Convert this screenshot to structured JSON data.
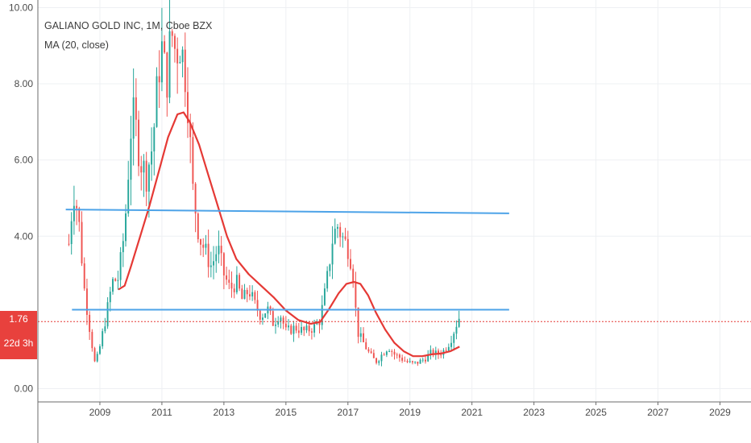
{
  "header": {
    "title": "GALIANO GOLD INC, 1M, Cboe BZX",
    "indicator": "MA (20, close)"
  },
  "price_badge": {
    "value": "1.76",
    "color": "#e8413d"
  },
  "countdown_badge": {
    "value": "22d 3h",
    "color": "#e8413d"
  },
  "colors": {
    "up": "#26a69a",
    "down": "#ef5350",
    "ma": "#e53935",
    "trendline": "#4da3e8",
    "grid": "#eef0f3"
  },
  "chart_data": {
    "type": "candlestick",
    "title": "GALIANO GOLD INC, 1M, Cboe BZX",
    "y_ticks": [
      "10.00",
      "8.00",
      "6.00",
      "4.00",
      "0.00"
    ],
    "y_tick_values": [
      10,
      8,
      6,
      4,
      0
    ],
    "x_ticks": [
      "2009",
      "2011",
      "2013",
      "2015",
      "2017",
      "2019",
      "2021",
      "2023",
      "2025",
      "2027",
      "2029"
    ],
    "x_tick_values": [
      2009,
      2011,
      2013,
      2015,
      2017,
      2019,
      2021,
      2023,
      2025,
      2027,
      2029
    ],
    "ylim": [
      -0.35,
      10.2
    ],
    "xlim": [
      2007.0,
      2030.0
    ],
    "grid": true,
    "last_price": 1.76,
    "price_path": [
      [
        2008.0,
        3.8
      ],
      [
        2008.15,
        5.2
      ],
      [
        2008.3,
        4.6
      ],
      [
        2008.5,
        2.6
      ],
      [
        2008.7,
        1.4
      ],
      [
        2008.85,
        0.6
      ],
      [
        2009.0,
        1.1
      ],
      [
        2009.2,
        1.9
      ],
      [
        2009.4,
        2.8
      ],
      [
        2009.6,
        2.9
      ],
      [
        2009.8,
        4.2
      ],
      [
        2010.0,
        6.8
      ],
      [
        2010.1,
        7.2
      ],
      [
        2010.3,
        6.0
      ],
      [
        2010.5,
        5.6
      ],
      [
        2010.7,
        6.4
      ],
      [
        2010.9,
        8.4
      ],
      [
        2011.0,
        8.9
      ],
      [
        2011.15,
        8.0
      ],
      [
        2011.3,
        9.4
      ],
      [
        2011.45,
        8.8
      ],
      [
        2011.6,
        9.1
      ],
      [
        2011.8,
        8.0
      ],
      [
        2012.0,
        5.2
      ],
      [
        2012.2,
        4.0
      ],
      [
        2012.4,
        3.6
      ],
      [
        2012.6,
        3.2
      ],
      [
        2012.8,
        3.7
      ],
      [
        2013.0,
        3.0
      ],
      [
        2013.2,
        2.6
      ],
      [
        2013.4,
        2.8
      ],
      [
        2013.6,
        2.3
      ],
      [
        2013.8,
        2.6
      ],
      [
        2014.0,
        2.2
      ],
      [
        2014.2,
        1.9
      ],
      [
        2014.4,
        2.1
      ],
      [
        2014.6,
        1.7
      ],
      [
        2014.8,
        2.0
      ],
      [
        2015.0,
        1.5
      ],
      [
        2015.3,
        1.6
      ],
      [
        2015.6,
        1.5
      ],
      [
        2015.9,
        1.6
      ],
      [
        2016.1,
        1.8
      ],
      [
        2016.3,
        2.7
      ],
      [
        2016.5,
        3.9
      ],
      [
        2016.65,
        4.3
      ],
      [
        2016.8,
        4.0
      ],
      [
        2017.0,
        3.7
      ],
      [
        2017.15,
        3.2
      ],
      [
        2017.3,
        1.5
      ],
      [
        2017.5,
        1.2
      ],
      [
        2017.7,
        0.9
      ],
      [
        2017.9,
        0.7
      ],
      [
        2018.1,
        0.9
      ],
      [
        2018.3,
        1.1
      ],
      [
        2018.5,
        0.9
      ],
      [
        2018.7,
        0.8
      ],
      [
        2018.9,
        0.7
      ],
      [
        2019.1,
        0.65
      ],
      [
        2019.3,
        0.7
      ],
      [
        2019.5,
        0.8
      ],
      [
        2019.7,
        0.95
      ],
      [
        2019.9,
        0.9
      ],
      [
        2020.1,
        1.0
      ],
      [
        2020.3,
        1.25
      ],
      [
        2020.5,
        1.7
      ],
      [
        2020.6,
        1.9
      ]
    ],
    "ma_series": {
      "name": "MA (20, close)",
      "points": [
        [
          2009.6,
          2.6
        ],
        [
          2009.8,
          2.7
        ],
        [
          2010.0,
          3.2
        ],
        [
          2010.3,
          4.0
        ],
        [
          2010.6,
          4.8
        ],
        [
          2010.9,
          5.7
        ],
        [
          2011.2,
          6.6
        ],
        [
          2011.5,
          7.2
        ],
        [
          2011.7,
          7.25
        ],
        [
          2011.9,
          7.0
        ],
        [
          2012.2,
          6.4
        ],
        [
          2012.5,
          5.6
        ],
        [
          2012.8,
          4.8
        ],
        [
          2013.1,
          4.0
        ],
        [
          2013.4,
          3.4
        ],
        [
          2013.8,
          3.0
        ],
        [
          2014.2,
          2.7
        ],
        [
          2014.6,
          2.4
        ],
        [
          2015.0,
          2.05
        ],
        [
          2015.4,
          1.8
        ],
        [
          2015.8,
          1.7
        ],
        [
          2016.1,
          1.75
        ],
        [
          2016.4,
          2.1
        ],
        [
          2016.7,
          2.5
        ],
        [
          2016.95,
          2.75
        ],
        [
          2017.2,
          2.8
        ],
        [
          2017.4,
          2.75
        ],
        [
          2017.65,
          2.45
        ],
        [
          2017.9,
          2.0
        ],
        [
          2018.2,
          1.55
        ],
        [
          2018.5,
          1.2
        ],
        [
          2018.8,
          0.98
        ],
        [
          2019.1,
          0.85
        ],
        [
          2019.4,
          0.85
        ],
        [
          2019.7,
          0.9
        ],
        [
          2020.0,
          0.92
        ],
        [
          2020.3,
          0.98
        ],
        [
          2020.6,
          1.1
        ]
      ]
    },
    "trendlines": [
      {
        "from": [
          2007.9,
          4.7
        ],
        "to": [
          2022.2,
          4.6
        ]
      },
      {
        "from": [
          2008.1,
          2.07
        ],
        "to": [
          2022.2,
          2.07
        ]
      }
    ]
  }
}
